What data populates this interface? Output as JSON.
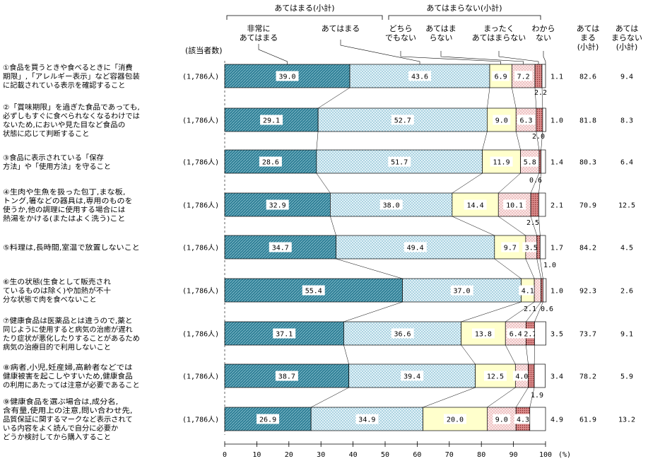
{
  "chart_data": {
    "type": "bar",
    "stacked": true,
    "orientation": "horizontal",
    "unit": "(%)",
    "xlim": [
      0,
      100
    ],
    "x_ticks": [
      "0",
      "10",
      "20",
      "30",
      "40",
      "50",
      "60",
      "70",
      "80",
      "90",
      "100"
    ],
    "respondents_header": "(該当者数)",
    "header": {
      "group_apply": "あてはまる(小計)",
      "group_not_apply": "あてはまらない(小計)",
      "segment_labels": [
        [
          "非常に",
          "あてはまる"
        ],
        [
          "あてはまる"
        ],
        [
          "どちら",
          "でもない"
        ],
        [
          "あてはま",
          "らない"
        ],
        [
          "まったく",
          "あてはまらない"
        ],
        [
          "わから",
          "ない"
        ]
      ],
      "subtotal_apply": [
        "あては",
        "まる",
        "(小計)"
      ],
      "subtotal_not_apply": [
        "あては",
        "まらない",
        "(小計)"
      ]
    },
    "series": [
      {
        "name": "非常にあてはまる",
        "color": "#2e7f96",
        "pattern": "diag"
      },
      {
        "name": "あてはまる",
        "color": "#d5ecf4",
        "pattern": "dots"
      },
      {
        "name": "どちらでもない",
        "color": "#ffffcc",
        "pattern": "none"
      },
      {
        "name": "あてはまらない",
        "color": "#f7dada",
        "pattern": "dots"
      },
      {
        "name": "まったくあてはまらない",
        "color": "#d98a8a",
        "pattern": "dots"
      },
      {
        "name": "わからない",
        "color": "#ffffff",
        "pattern": "none"
      }
    ],
    "rows": [
      {
        "label": [
          "①食品を買うときや食べるときに「消費",
          "期限」,「アレルギー表示」など容器包装",
          "に記載されている表示を確認すること"
        ],
        "n": "(1,786人)",
        "values": [
          39.0,
          43.6,
          6.9,
          7.2,
          2.2,
          1.1
        ],
        "subtotal_apply": "82.6",
        "subtotal_not_apply": "9.4"
      },
      {
        "label": [
          "②「賞味期限」を過ぎた食品であっても,",
          "必ずしもすぐに食べられなくなるわけでは",
          "ないため,においや見た目など食品の",
          "状態に応じて判断すること"
        ],
        "n": "(1,786人)",
        "values": [
          29.1,
          52.7,
          9.0,
          6.3,
          2.0,
          1.0
        ],
        "subtotal_apply": "81.8",
        "subtotal_not_apply": "8.3"
      },
      {
        "label": [
          "③食品に表示されている「保存",
          "方法」や「使用方法」を守ること"
        ],
        "n": "(1,786人)",
        "values": [
          28.6,
          51.7,
          11.9,
          5.8,
          0.6,
          1.4
        ],
        "subtotal_apply": "80.3",
        "subtotal_not_apply": "6.4"
      },
      {
        "label": [
          "④生肉や生魚を扱った包丁,まな板,",
          "トング,箸などの器具は,専用のものを",
          "使うか,他の調理に使用する場合には",
          "熱湯をかける(またはよく洗う)こと"
        ],
        "n": "(1,786人)",
        "values": [
          32.9,
          38.0,
          14.4,
          10.1,
          2.5,
          2.1
        ],
        "subtotal_apply": "70.9",
        "subtotal_not_apply": "12.5"
      },
      {
        "label": [
          "⑤料理は,長時間,室温で放置しないこと"
        ],
        "n": "(1,786人)",
        "values": [
          34.7,
          49.4,
          9.7,
          3.5,
          1.0,
          1.7
        ],
        "subtotal_apply": "84.2",
        "subtotal_not_apply": "4.5"
      },
      {
        "label": [
          "⑥生の状態(生食として販売され",
          "ているものは除く)や加熱が不十",
          "分な状態で肉を食べないこと"
        ],
        "n": "(1,786人)",
        "values": [
          55.4,
          37.0,
          4.1,
          2.1,
          0.6,
          1.0
        ],
        "subtotal_apply": "92.3",
        "subtotal_not_apply": "2.6"
      },
      {
        "label": [
          "⑦健康食品は医薬品とは違うので,薬と",
          "同じように使用すると病気の治癒が遅れ",
          "たり症状が悪化したりすることがあるため",
          "病気の治療目的で利用しないこと"
        ],
        "n": "(1,786人)",
        "values": [
          37.1,
          36.6,
          13.8,
          6.4,
          2.7,
          3.5
        ],
        "subtotal_apply": "73.7",
        "subtotal_not_apply": "9.1"
      },
      {
        "label": [
          "⑧病者,小児,妊産婦,高齢者などでは",
          "健康被害を起こしやすいため,健康食品",
          "の利用にあたっては注意が必要であること"
        ],
        "n": "(1,786人)",
        "values": [
          38.7,
          39.4,
          12.5,
          4.0,
          1.9,
          3.4
        ],
        "subtotal_apply": "78.2",
        "subtotal_not_apply": "5.9"
      },
      {
        "label": [
          "⑨健康食品を選ぶ場合は,成分名,",
          "含有量,使用上の注意,問い合わせ先,",
          "品質保証に関するマークなど表示されて",
          "いる内容をよく読んで自分に必要か",
          "どうか検討してから購入すること"
        ],
        "n": "(1,786人)",
        "values": [
          26.9,
          34.9,
          20.0,
          9.0,
          4.3,
          4.9
        ],
        "subtotal_apply": "61.9",
        "subtotal_not_apply": "13.2"
      }
    ]
  }
}
